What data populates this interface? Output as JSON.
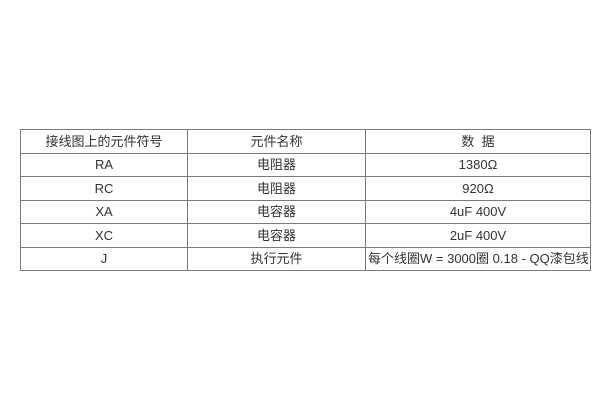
{
  "page": {
    "background_color": "#ffffff",
    "border_color": "#7a7a7a",
    "text_color": "#333333"
  },
  "table": {
    "headers": [
      "接线图上的元件符号",
      "元件名称",
      "数  据"
    ],
    "rows": [
      [
        "RA",
        "电阻器",
        "1380Ω"
      ],
      [
        "RC",
        "电阻器",
        "920Ω"
      ],
      [
        "XA",
        "电容器",
        "4uF 400V"
      ],
      [
        "XC",
        "电容器",
        "2uF 400V"
      ],
      [
        "J",
        "执行元件",
        "每个线圈W = 3000圈 0.18 - QQ漆包线"
      ]
    ]
  }
}
